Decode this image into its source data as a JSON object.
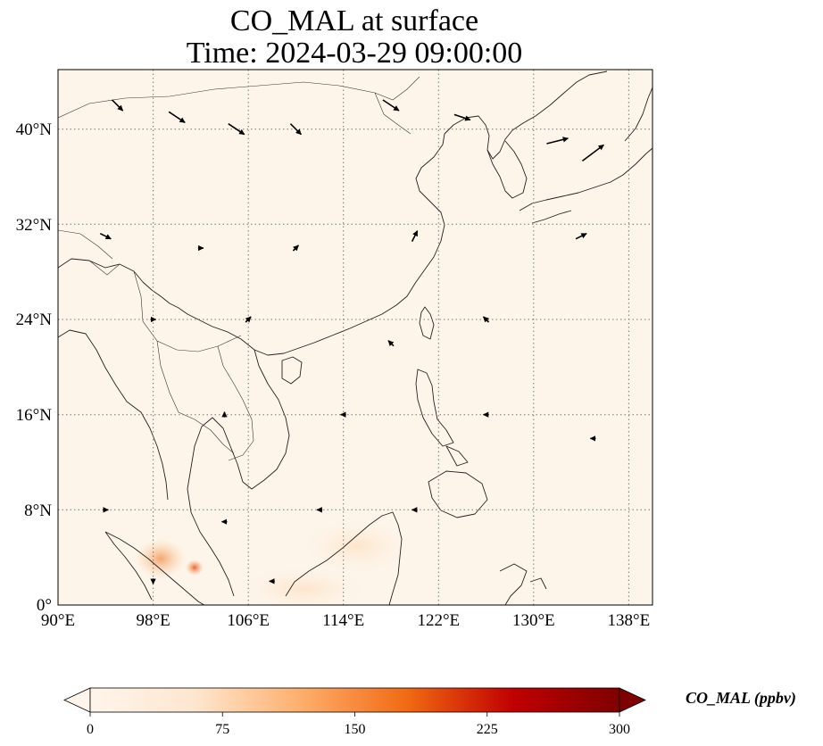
{
  "title": {
    "line1": "CO_MAL at surface",
    "line2": "Time: 2024-03-29 09:00:00"
  },
  "colors": {
    "background": "#fdf5ea",
    "low": "#fff5eb",
    "mid": "#fdae6b",
    "high": "#d94801",
    "max": "#7f0000",
    "arrow": "#000000"
  },
  "map": {
    "lon_range": [
      90,
      140
    ],
    "lat_range": [
      0,
      45
    ],
    "x_ticks": [
      "90°E",
      "98°E",
      "106°E",
      "114°E",
      "122°E",
      "130°E",
      "138°E"
    ],
    "y_ticks": [
      "0°",
      "8°N",
      "16°N",
      "24°N",
      "32°N",
      "40°N"
    ],
    "gridlines": "on, dotted"
  },
  "colorbar": {
    "label": "CO_MAL (ppbv)",
    "range": [
      0,
      300
    ],
    "ticks": [
      "0",
      "75",
      "150",
      "225",
      "300"
    ],
    "extend": "both"
  },
  "chart_data": {
    "type": "heatmap",
    "variable": "CO_MAL",
    "units": "ppbv",
    "level": "surface",
    "time": "2024-03-29 09:00:00",
    "hotspots": [
      {
        "lon": 98.2,
        "lat": 4.0,
        "value": 60
      },
      {
        "lon": 101.5,
        "lat": 3.2,
        "value": 110
      },
      {
        "lon": 110,
        "lat": 3.5,
        "value": 20
      },
      {
        "lon": 116,
        "lat": 5.5,
        "value": 15
      }
    ],
    "wind_vectors": [
      {
        "lon": 95,
        "lat": 42,
        "u": 2,
        "v": -2
      },
      {
        "lon": 100,
        "lat": 41,
        "u": 3,
        "v": -2
      },
      {
        "lon": 105,
        "lat": 40,
        "u": 3,
        "v": -2
      },
      {
        "lon": 110,
        "lat": 40,
        "u": 2,
        "v": -2
      },
      {
        "lon": 118,
        "lat": 42,
        "u": 3,
        "v": -2
      },
      {
        "lon": 124,
        "lat": 41,
        "u": 3,
        "v": -1
      },
      {
        "lon": 132,
        "lat": 39,
        "u": 4,
        "v": 1
      },
      {
        "lon": 135,
        "lat": 38,
        "u": 4,
        "v": 3
      },
      {
        "lon": 94,
        "lat": 31,
        "u": 2,
        "v": -1
      },
      {
        "lon": 102,
        "lat": 30,
        "u": 1,
        "v": 0
      },
      {
        "lon": 110,
        "lat": 30,
        "u": 1,
        "v": 1
      },
      {
        "lon": 120,
        "lat": 31,
        "u": 1,
        "v": 2
      },
      {
        "lon": 134,
        "lat": 31,
        "u": 2,
        "v": 1
      },
      {
        "lon": 98,
        "lat": 24,
        "u": 1,
        "v": 0
      },
      {
        "lon": 106,
        "lat": 24,
        "u": 1,
        "v": 1
      },
      {
        "lon": 118,
        "lat": 22,
        "u": -1,
        "v": 1
      },
      {
        "lon": 126,
        "lat": 24,
        "u": -1,
        "v": 1
      },
      {
        "lon": 104,
        "lat": 16,
        "u": 0,
        "v": 1
      },
      {
        "lon": 114,
        "lat": 16,
        "u": -1,
        "v": 0
      },
      {
        "lon": 126,
        "lat": 16,
        "u": -1,
        "v": 0
      },
      {
        "lon": 135,
        "lat": 14,
        "u": -1,
        "v": 0
      },
      {
        "lon": 94,
        "lat": 8,
        "u": 1,
        "v": 0
      },
      {
        "lon": 104,
        "lat": 7,
        "u": -1,
        "v": 0
      },
      {
        "lon": 112,
        "lat": 8,
        "u": -1,
        "v": 0
      },
      {
        "lon": 120,
        "lat": 8,
        "u": -1,
        "v": 0
      },
      {
        "lon": 98,
        "lat": 2,
        "u": 0,
        "v": -1
      },
      {
        "lon": 108,
        "lat": 2,
        "u": -1,
        "v": 0
      }
    ]
  }
}
